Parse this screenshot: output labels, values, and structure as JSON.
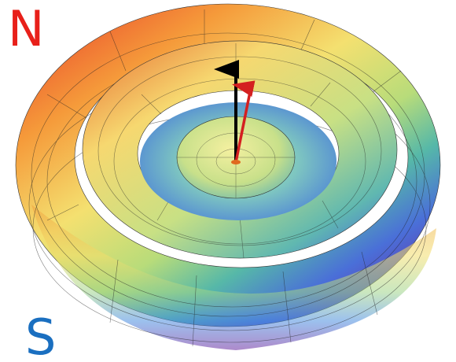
{
  "labels": {
    "north": "N",
    "south": "S"
  }
}
